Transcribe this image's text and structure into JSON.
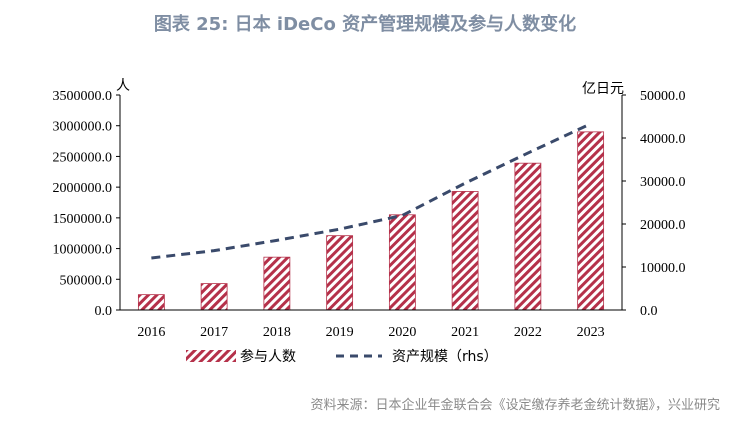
{
  "title": "图表 25: 日本 iDeCo 资产管理规模及参与人数变化",
  "source": "资料来源：日本企业年金联合会《设定缴存养老金统计数据》，兴业研究",
  "colors": {
    "bar": "#b5314a",
    "line": "#3a4a6b",
    "title": "#7f8ea3"
  },
  "chart_data": {
    "type": "bar",
    "categories": [
      "2016",
      "2017",
      "2018",
      "2019",
      "2020",
      "2021",
      "2022",
      "2023"
    ],
    "series": [
      {
        "name": "参与人数",
        "type": "bar",
        "axis": "left",
        "values": [
          250000,
          430000,
          860000,
          1210000,
          1550000,
          1930000,
          2390000,
          2900000
        ]
      },
      {
        "name": "资产规模（rhs）",
        "type": "line",
        "axis": "right",
        "style": "dashed",
        "values": [
          12100,
          13800,
          16200,
          18800,
          22000,
          29500,
          36500,
          43300
        ]
      }
    ],
    "left_axis": {
      "unit": "人",
      "ylim": [
        0,
        3500000
      ],
      "ticks": [
        "3500000.0",
        "3000000.0",
        "2500000.0",
        "2000000.0",
        "1500000.0",
        "1000000.0",
        "500000.0",
        "0.0"
      ],
      "tick_values": [
        3500000,
        3000000,
        2500000,
        2000000,
        1500000,
        1000000,
        500000,
        0
      ]
    },
    "right_axis": {
      "unit": "亿日元",
      "ylim": [
        0,
        50000
      ],
      "ticks": [
        "50000.0",
        "40000.0",
        "30000.0",
        "20000.0",
        "10000.0",
        "0.0"
      ],
      "tick_values": [
        50000,
        40000,
        30000,
        20000,
        10000,
        0
      ]
    },
    "grid": false,
    "legend_position": "bottom"
  }
}
